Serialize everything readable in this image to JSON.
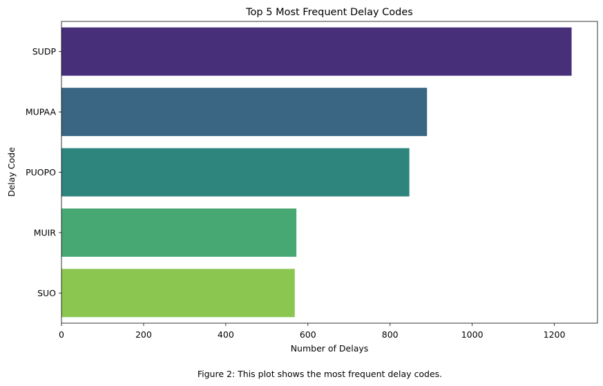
{
  "chart_data": {
    "type": "bar",
    "orientation": "horizontal",
    "title": "Top 5 Most Frequent Delay Codes",
    "xlabel": "Number of Delays",
    "ylabel": "Delay Code",
    "categories": [
      "SUDP",
      "MUPAA",
      "PUOPO",
      "MUIR",
      "SUO"
    ],
    "values": [
      1242,
      890,
      847,
      572,
      568
    ],
    "colors": [
      "#482f7a",
      "#3a6683",
      "#2e857d",
      "#47a874",
      "#8bc651"
    ],
    "xlim": [
      0,
      1305
    ],
    "xticks": [
      0,
      200,
      400,
      600,
      800,
      1000,
      1200
    ],
    "grid": false,
    "legend": "none"
  },
  "caption": "Figure 2: This plot shows the most frequent delay codes."
}
